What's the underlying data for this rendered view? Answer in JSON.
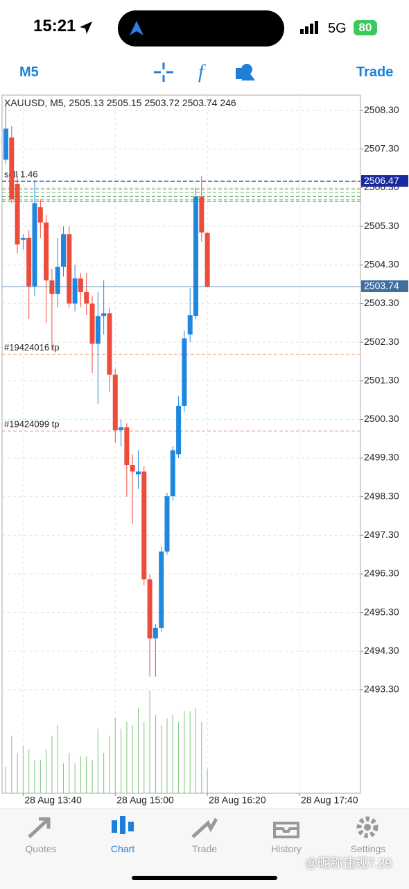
{
  "status_bar": {
    "time": "15:21",
    "network": "5G",
    "battery": "80"
  },
  "toolbar": {
    "timeframe": "M5",
    "trade": "Trade"
  },
  "chart_data": {
    "type": "candlestick",
    "title": "XAUUSD, M5,",
    "open": [
      2507.03,
      2507.6,
      2506.4,
      2504.95,
      2505.0,
      2503.75,
      2505.8,
      2505.4,
      2503.9,
      2503.55,
      2504.25,
      2505.1,
      2503.3,
      2503.95,
      2503.6,
      2503.3,
      2502.26,
      2502.98,
      2503.05,
      2501.46,
      2500.02,
      2500.1,
      2499.12,
      2498.88,
      2498.95,
      2496.16,
      2494.63,
      2494.9,
      2496.88,
      2498.31,
      2499.4,
      2500.65,
      2502.5,
      2502.98,
      2506.07,
      2505.13
    ],
    "high": [
      2508.5,
      2507.9,
      2506.6,
      2505.1,
      2505.2,
      2506.5,
      2506.0,
      2505.6,
      2504.2,
      2505.0,
      2505.3,
      2505.3,
      2504.3,
      2504.1,
      2504.1,
      2503.5,
      2503.6,
      2503.9,
      2503.2,
      2501.6,
      2500.3,
      2500.2,
      2499.4,
      2499.5,
      2499.1,
      2496.3,
      2495.0,
      2497.0,
      2498.4,
      2499.6,
      2500.9,
      2502.6,
      2503.7,
      2506.3,
      2506.6,
      2505.15
    ],
    "low": [
      2506.9,
      2505.9,
      2504.6,
      2504.7,
      2502.9,
      2503.5,
      2505.0,
      2502.8,
      2502.1,
      2503.2,
      2504.0,
      2503.2,
      2503.1,
      2503.2,
      2503.0,
      2501.5,
      2500.7,
      2502.5,
      2501.0,
      2499.7,
      2499.6,
      2498.3,
      2497.6,
      2498.5,
      2496.0,
      2493.64,
      2493.64,
      2494.8,
      2496.8,
      2498.2,
      2499.3,
      2500.5,
      2502.3,
      2502.9,
      2504.9,
      2503.72
    ],
    "close": [
      2507.83,
      2506.0,
      2504.83,
      2505.0,
      2503.75,
      2505.9,
      2505.4,
      2503.9,
      2503.55,
      2504.25,
      2505.1,
      2503.3,
      2503.95,
      2503.6,
      2503.3,
      2502.26,
      2502.98,
      2503.05,
      2501.46,
      2500.02,
      2500.1,
      2499.12,
      2498.95,
      2498.95,
      2496.16,
      2494.63,
      2494.9,
      2496.88,
      2498.31,
      2499.5,
      2500.65,
      2502.4,
      2503.0,
      2506.07,
      2505.14,
      2503.74
    ],
    "volume": [
      266,
      581,
      406,
      476,
      441,
      336,
      336,
      441,
      581,
      686,
      301,
      406,
      301,
      371,
      371,
      336,
      651,
      406,
      581,
      756,
      651,
      721,
      686,
      861,
      721,
      1036,
      791,
      686,
      756,
      791,
      721,
      826,
      826,
      861,
      721,
      246
    ],
    "up_color": "#1f87e0",
    "down_color": "#ee4b3b",
    "volume_color": "#7cc47c",
    "xlim": [
      -0.66,
      61.6
    ],
    "xticks": [
      {
        "value": 3,
        "label": "28 Aug 13:40"
      },
      {
        "value": 19,
        "label": "28 Aug 15:00"
      },
      {
        "value": 35,
        "label": "28 Aug 16:20"
      },
      {
        "value": 51,
        "label": "28 Aug 17:40"
      }
    ],
    "ylim": [
      2490.62,
      2508.7
    ],
    "yticks": [
      {
        "value": 2508.3,
        "label": "2508.30"
      },
      {
        "value": 2507.3,
        "label": "2507.30"
      },
      {
        "value": 2506.3,
        "label": "2506.30"
      },
      {
        "value": 2505.3,
        "label": "2505.30"
      },
      {
        "value": 2504.3,
        "label": "2504.30"
      },
      {
        "value": 2503.3,
        "label": "2503.30"
      },
      {
        "value": 2502.3,
        "label": "2502.30"
      },
      {
        "value": 2501.3,
        "label": "2501.30"
      },
      {
        "value": 2500.3,
        "label": "2500.30"
      },
      {
        "value": 2499.3,
        "label": "2499.30"
      },
      {
        "value": 2498.3,
        "label": "2498.30"
      },
      {
        "value": 2497.3,
        "label": "2497.30"
      },
      {
        "value": 2496.3,
        "label": "2496.30"
      },
      {
        "value": 2495.3,
        "label": "2495.30"
      },
      {
        "value": 2494.3,
        "label": "2494.30"
      },
      {
        "value": 2493.3,
        "label": "2493.30"
      }
    ],
    "grid": true,
    "order_line": {
      "label": "sell 1.46",
      "price": 2506.47,
      "color": "#1a2a9e"
    },
    "green_lines": {
      "prices": [
        2506.27,
        2506.18,
        2506.07,
        2506.0,
        2505.95
      ],
      "color": "#2e8b3a"
    },
    "tp_lines": [
      {
        "label": "#19424016 tp",
        "price": 2501.99
      },
      {
        "label": "#19424099 tp",
        "price": 2500.0
      }
    ],
    "tp_color": "#f0a080",
    "bid_color": "#3f6f9f"
  },
  "tabs": [
    "Quotes",
    "Chart",
    "Trade",
    "History",
    "Settings"
  ],
  "watermark": "@昵称违规7.29"
}
